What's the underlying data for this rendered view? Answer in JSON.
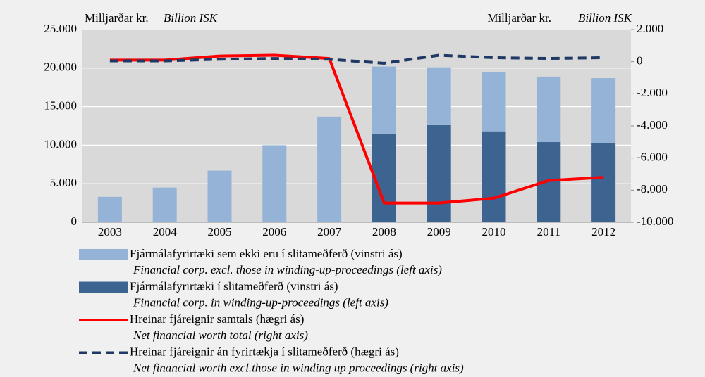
{
  "chart_data": {
    "type": "bar",
    "y_label": "Milljarðar kr.",
    "y_label_en": "Billion  ISK",
    "y2_label": "Milljarðar kr.",
    "y2_label_en": "Billion ISK",
    "categories": [
      "2003",
      "2004",
      "2005",
      "2006",
      "2007",
      "2008",
      "2009",
      "2010",
      "2011",
      "2012"
    ],
    "series": [
      {
        "name": "Fjármálafyrirtæki í slitameðferð (vinstri ás)",
        "name_en": "Financial corp. in winding-up-proceedings (left axis)",
        "type": "bar",
        "color": "#3d6391",
        "values": [
          null,
          null,
          null,
          null,
          null,
          11500,
          12600,
          11800,
          10400,
          10300
        ]
      },
      {
        "name": "Fjármálafyrirtæki sem ekki eru í slitameðferð (vinstri ás)",
        "name_en": "Financial corp. excl.  those in winding-up-proceedings (left axis)",
        "type": "bar",
        "color": "#95b3d7",
        "values": [
          3300,
          4500,
          6700,
          10000,
          13700,
          8700,
          7500,
          7700,
          8500,
          8400
        ]
      },
      {
        "name": "Hreinar fjáreignir samtals (hægri ás)",
        "name_en": "Net financial worth total (right axis)",
        "type": "line",
        "axis": "y2",
        "color": "#ff0000",
        "values": [
          100,
          100,
          350,
          400,
          200,
          -8800,
          -8800,
          -8500,
          -7400,
          -7200
        ]
      },
      {
        "name": "Hreinar fjáreignir án fyrirtækja í slitameðferð (hægri ás)",
        "name_en": "Net financial worth excl.those in winding up proceedings (right axis)",
        "type": "line",
        "dashed": true,
        "axis": "y2",
        "color": "#1f3864",
        "values": [
          50,
          50,
          150,
          200,
          150,
          -100,
          400,
          250,
          200,
          250
        ]
      }
    ],
    "legend_order": [
      1,
      0,
      2,
      3
    ],
    "ylim": [
      0,
      25000
    ],
    "yticks": [
      0,
      {
        "value": 5000,
        "label": "5.000"
      },
      {
        "value": 10000,
        "label": "10.000"
      },
      {
        "value": 15000,
        "label": "15.000"
      },
      {
        "value": 20000,
        "label": "20.000"
      },
      {
        "value": 25000,
        "label": "25.000"
      }
    ],
    "y2lim": [
      -10000,
      2000
    ],
    "y2ticks": [
      {
        "value": -10000,
        "label": "-10.000"
      },
      {
        "value": -8000,
        "label": "-8.000"
      },
      {
        "value": -6000,
        "label": "-6.000"
      },
      {
        "value": -4000,
        "label": "-4.000"
      },
      {
        "value": -2000,
        "label": "-2.000"
      },
      0,
      {
        "value": 2000,
        "label": "2.000"
      }
    ],
    "grid": true
  }
}
